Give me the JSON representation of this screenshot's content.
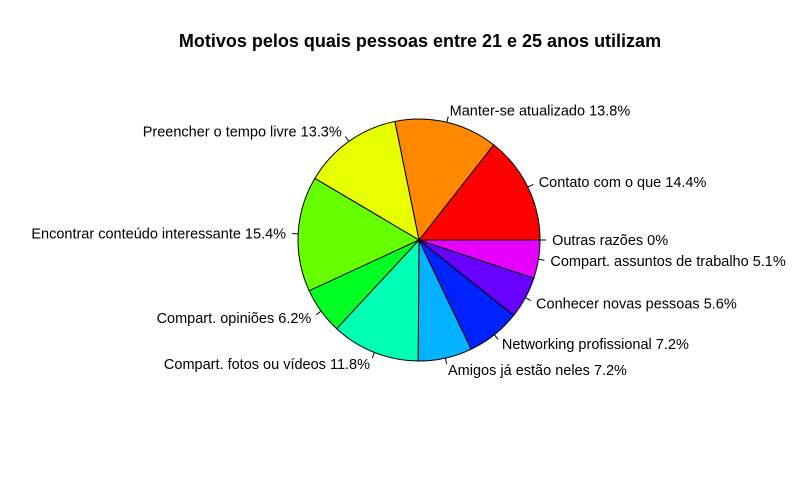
{
  "chart_data": {
    "type": "pie",
    "title": "Motivos pelos quais pessoas entre 21 e 25 anos utilizam",
    "slices": [
      {
        "label": "Outras razões 0%",
        "value": 0.0,
        "color": "#FF00FF"
      },
      {
        "label": "Contato com o  que  14.4%",
        "value": 14.4,
        "color": "#FF0000"
      },
      {
        "label": "Manter-se atualizado  13.8%",
        "value": 13.8,
        "color": "#FF8800"
      },
      {
        "label": "Preencher o tempo livre 13.3%",
        "value": 13.3,
        "color": "#E8FF00"
      },
      {
        "label": "Encontrar conteúdo interessante 15.4%",
        "value": 15.4,
        "color": "#66FF00"
      },
      {
        "label": "Compart. opiniões 6.2%",
        "value": 6.2,
        "color": "#00FF22"
      },
      {
        "label": "Compart. fotos ou vídeos 11.8%",
        "value": 11.8,
        "color": "#00FFB2"
      },
      {
        "label": "Amigos já estão neles 7.2%",
        "value": 7.2,
        "color": "#00B2FF"
      },
      {
        "label": "Networking profissional 7.2%",
        "value": 7.2,
        "color": "#0022FF"
      },
      {
        "label": "Conhecer novas pessoas 5.6%",
        "value": 5.6,
        "color": "#6600FF"
      },
      {
        "label": "Compart. assuntos de trabalho 5.1%",
        "value": 5.1,
        "color": "#E500FF"
      }
    ],
    "start_angle_deg": 0,
    "direction": "counterclockwise"
  }
}
